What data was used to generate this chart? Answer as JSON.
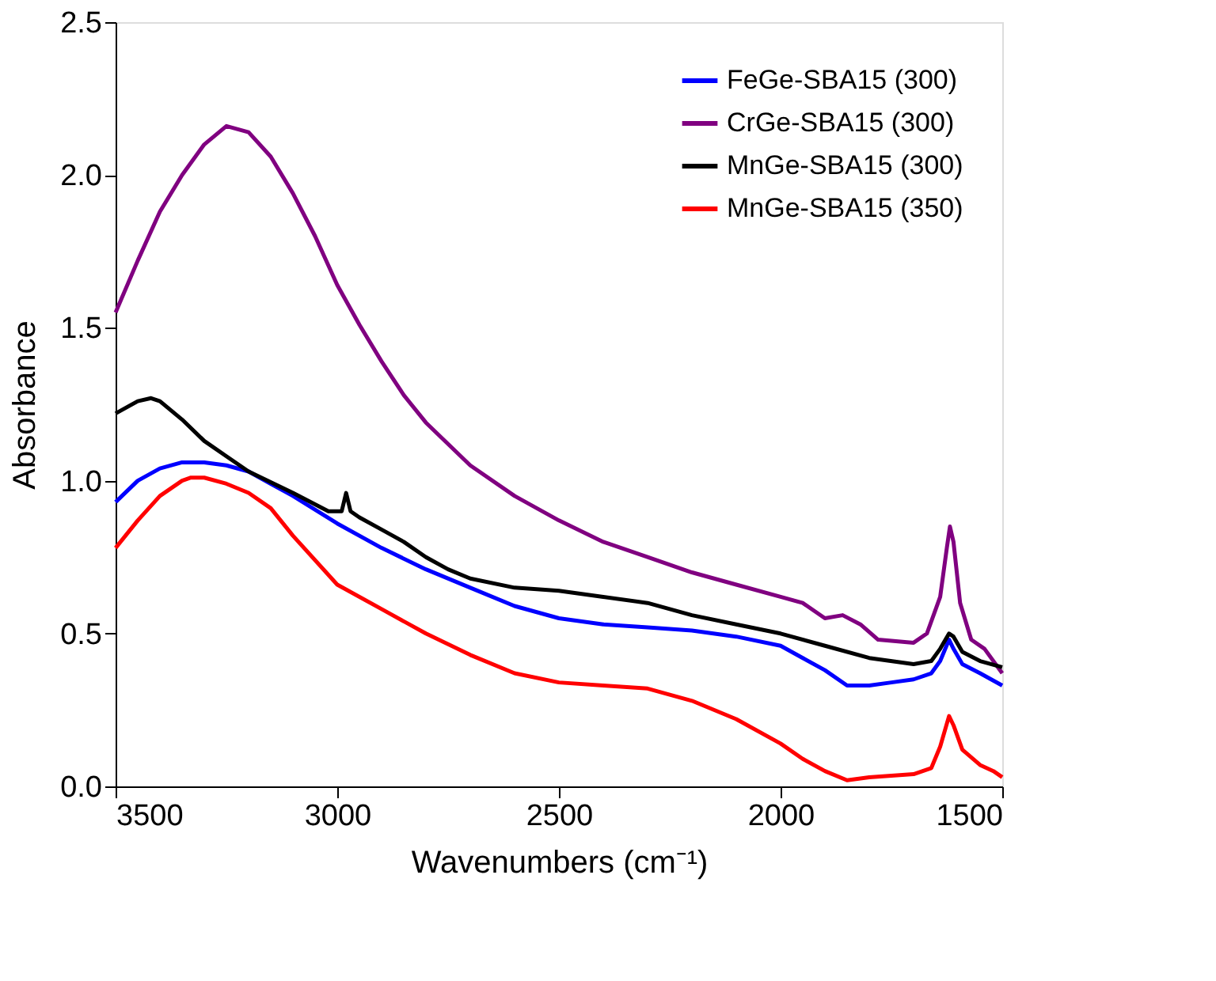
{
  "chart_data": {
    "type": "line",
    "xlabel": "Wavenumbers (cm⁻¹)",
    "ylabel": "Absorbance",
    "xlim": [
      3500,
      1500
    ],
    "ylim": [
      0,
      2.5
    ],
    "xticks": [
      3500,
      3000,
      2500,
      2000,
      1500
    ],
    "yticks": [
      {
        "value": 0,
        "label": "0.0"
      },
      {
        "value": 0.5,
        "label": "0.5"
      },
      {
        "value": 1,
        "label": "1.0"
      },
      {
        "value": 1.5,
        "label": "1.5"
      },
      {
        "value": 2,
        "label": "2.0"
      },
      {
        "value": 2.5,
        "label": "2.5"
      }
    ],
    "grid": false,
    "legend": "top right",
    "line_style": "solid",
    "marker": "none",
    "series": [
      {
        "name": "FeGe-SBA15 (300)",
        "color": "#0000ff",
        "x": [
          3500,
          3450,
          3400,
          3350,
          3300,
          3250,
          3200,
          3150,
          3100,
          3000,
          2900,
          2800,
          2700,
          2600,
          2500,
          2400,
          2300,
          2200,
          2100,
          2000,
          1950,
          1900,
          1850,
          1800,
          1750,
          1700,
          1660,
          1640,
          1620,
          1610,
          1590,
          1550,
          1500
        ],
        "values": [
          0.93,
          1.0,
          1.04,
          1.06,
          1.06,
          1.05,
          1.03,
          0.99,
          0.95,
          0.86,
          0.78,
          0.71,
          0.65,
          0.59,
          0.55,
          0.53,
          0.52,
          0.51,
          0.49,
          0.46,
          0.42,
          0.38,
          0.33,
          0.33,
          0.34,
          0.35,
          0.37,
          0.41,
          0.48,
          0.45,
          0.4,
          0.37,
          0.33
        ]
      },
      {
        "name": "CrGe-SBA15 (300)",
        "color": "#800080",
        "x": [
          3500,
          3450,
          3400,
          3350,
          3300,
          3250,
          3200,
          3150,
          3100,
          3050,
          3000,
          2950,
          2900,
          2850,
          2800,
          2700,
          2600,
          2500,
          2400,
          2300,
          2200,
          2100,
          2000,
          1950,
          1900,
          1860,
          1820,
          1780,
          1700,
          1670,
          1640,
          1625,
          1618,
          1610,
          1595,
          1570,
          1540,
          1500
        ],
        "values": [
          1.55,
          1.72,
          1.88,
          2.0,
          2.1,
          2.16,
          2.14,
          2.06,
          1.94,
          1.8,
          1.64,
          1.51,
          1.39,
          1.28,
          1.19,
          1.05,
          0.95,
          0.87,
          0.8,
          0.75,
          0.7,
          0.66,
          0.62,
          0.6,
          0.55,
          0.56,
          0.53,
          0.48,
          0.47,
          0.5,
          0.62,
          0.78,
          0.85,
          0.8,
          0.6,
          0.48,
          0.45,
          0.37
        ]
      },
      {
        "name": "MnGe-SBA15 (300)",
        "color": "#000000",
        "x": [
          3500,
          3450,
          3420,
          3400,
          3350,
          3300,
          3250,
          3200,
          3100,
          3020,
          2990,
          2980,
          2970,
          2950,
          2900,
          2850,
          2800,
          2750,
          2700,
          2600,
          2500,
          2400,
          2300,
          2200,
          2100,
          2000,
          1900,
          1800,
          1700,
          1660,
          1640,
          1620,
          1610,
          1590,
          1550,
          1500
        ],
        "values": [
          1.22,
          1.26,
          1.27,
          1.26,
          1.2,
          1.13,
          1.08,
          1.03,
          0.96,
          0.9,
          0.9,
          0.96,
          0.9,
          0.88,
          0.84,
          0.8,
          0.75,
          0.71,
          0.68,
          0.65,
          0.64,
          0.62,
          0.6,
          0.56,
          0.53,
          0.5,
          0.46,
          0.42,
          0.4,
          0.41,
          0.45,
          0.5,
          0.49,
          0.44,
          0.41,
          0.39
        ]
      },
      {
        "name": "MnGe-SBA15 (350)",
        "color": "#ff0000",
        "x": [
          3500,
          3450,
          3400,
          3350,
          3330,
          3300,
          3250,
          3200,
          3150,
          3100,
          3000,
          2900,
          2800,
          2700,
          2600,
          2500,
          2400,
          2300,
          2200,
          2100,
          2000,
          1950,
          1900,
          1850,
          1800,
          1700,
          1660,
          1640,
          1620,
          1610,
          1590,
          1550,
          1520,
          1500
        ],
        "values": [
          0.78,
          0.87,
          0.95,
          1.0,
          1.01,
          1.01,
          0.99,
          0.96,
          0.91,
          0.82,
          0.66,
          0.58,
          0.5,
          0.43,
          0.37,
          0.34,
          0.33,
          0.32,
          0.28,
          0.22,
          0.14,
          0.09,
          0.05,
          0.02,
          0.03,
          0.04,
          0.06,
          0.13,
          0.23,
          0.2,
          0.12,
          0.07,
          0.05,
          0.03
        ]
      }
    ]
  }
}
